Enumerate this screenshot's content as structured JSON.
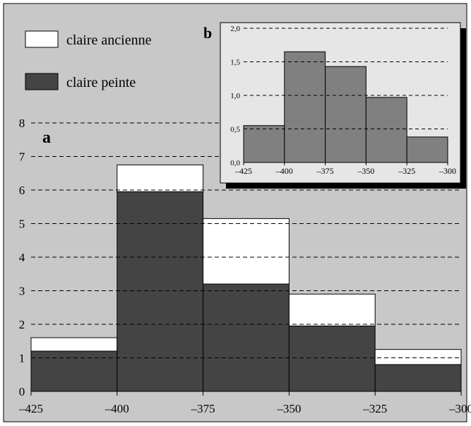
{
  "colors": {
    "panel_bg": "#c8c8c8",
    "inset_bg": "#e6e6e6",
    "dark_fill": "#444444",
    "light_fill": "#ffffff",
    "inset_fill": "#808080"
  },
  "legend": [
    {
      "label": "claire ancienne",
      "color": "#ffffff"
    },
    {
      "label": "claire peinte",
      "color": "#444444"
    }
  ],
  "chart_data": [
    {
      "panel_label": "a",
      "type": "bar",
      "stacked": true,
      "xlim": [
        -425,
        -300
      ],
      "ylim": [
        0,
        8
      ],
      "xticks": [
        -425,
        -400,
        -375,
        -350,
        -325,
        -300
      ],
      "xtick_labels": [
        "–425",
        "–400",
        "–375",
        "–350",
        "–325",
        "–300"
      ],
      "yticks": [
        0,
        1,
        2,
        3,
        4,
        5,
        6,
        7,
        8
      ],
      "ytick_labels": [
        "0",
        "1",
        "2",
        "3",
        "4",
        "5",
        "6",
        "7",
        "8"
      ],
      "grid": "horizontal dashed",
      "bins": [
        [
          -425,
          -400
        ],
        [
          -400,
          -375
        ],
        [
          -375,
          -350
        ],
        [
          -350,
          -325
        ],
        [
          -325,
          -300
        ]
      ],
      "series": [
        {
          "name": "claire peinte",
          "values": [
            1.2,
            5.95,
            3.2,
            1.95,
            0.8
          ]
        },
        {
          "name": "claire ancienne",
          "values": [
            0.4,
            0.8,
            1.95,
            0.95,
            0.45
          ]
        }
      ]
    },
    {
      "panel_label": "b",
      "type": "bar",
      "xlim": [
        -425,
        -300
      ],
      "ylim": [
        0,
        2.0
      ],
      "xticks": [
        -425,
        -400,
        -375,
        -350,
        -325,
        -300
      ],
      "xtick_labels": [
        "–425",
        "–400",
        "–375",
        "–350",
        "–325",
        "–300"
      ],
      "yticks": [
        0,
        0.5,
        1.0,
        1.5,
        2.0
      ],
      "ytick_labels": [
        "0,0",
        "0,5",
        "1,0",
        "1,5",
        "2,0"
      ],
      "grid": "horizontal dashed",
      "bins": [
        [
          -425,
          -400
        ],
        [
          -400,
          -375
        ],
        [
          -375,
          -350
        ],
        [
          -350,
          -325
        ],
        [
          -325,
          -300
        ]
      ],
      "values": [
        0.55,
        1.65,
        1.43,
        0.97,
        0.38
      ]
    }
  ]
}
